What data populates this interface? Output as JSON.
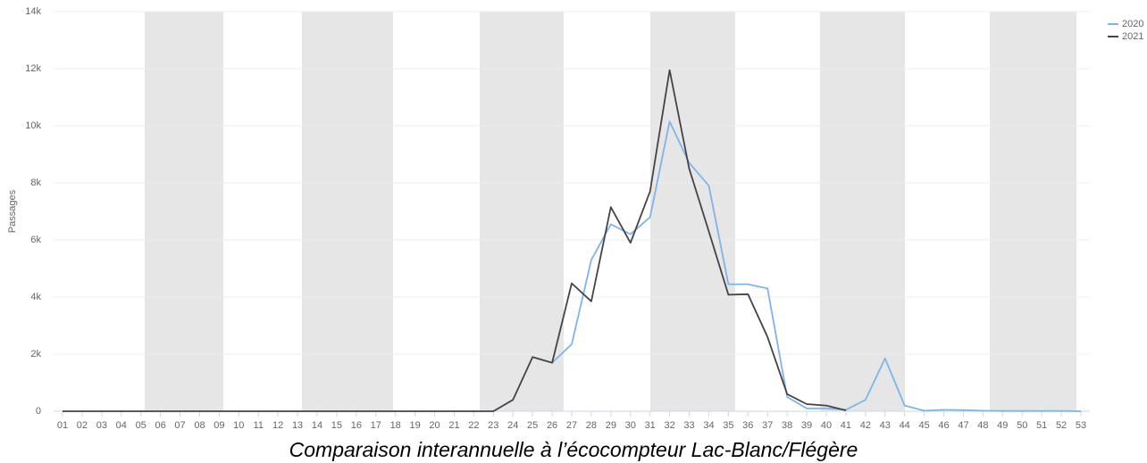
{
  "chart_data": {
    "type": "line",
    "title": "Comparaison interannuelle à l’écocompteur Lac-Blanc/Flégère",
    "y_label": "Passages",
    "categories": [
      "01",
      "02",
      "03",
      "04",
      "05",
      "06",
      "07",
      "08",
      "09",
      "10",
      "11",
      "12",
      "13",
      "14",
      "15",
      "16",
      "17",
      "18",
      "19",
      "20",
      "21",
      "22",
      "23",
      "24",
      "25",
      "26",
      "27",
      "28",
      "29",
      "30",
      "31",
      "32",
      "33",
      "34",
      "35",
      "36",
      "37",
      "38",
      "39",
      "40",
      "41",
      "42",
      "43",
      "44",
      "45",
      "46",
      "47",
      "48",
      "49",
      "50",
      "51",
      "52",
      "53"
    ],
    "series": [
      {
        "name": "2020",
        "color": "#7cb5ec",
        "values": [
          null,
          null,
          null,
          null,
          null,
          null,
          null,
          null,
          null,
          null,
          null,
          null,
          null,
          null,
          null,
          null,
          null,
          null,
          null,
          null,
          null,
          null,
          null,
          null,
          null,
          1700,
          2350,
          5300,
          6550,
          6200,
          6800,
          10150,
          8700,
          7900,
          4450,
          4450,
          4300,
          500,
          100,
          100,
          50,
          400,
          1850,
          200,
          20,
          50,
          40,
          20,
          10,
          10,
          10,
          10,
          0
        ]
      },
      {
        "name": "2021",
        "color": "#434348",
        "values": [
          0,
          0,
          0,
          0,
          0,
          0,
          0,
          0,
          0,
          0,
          0,
          0,
          0,
          0,
          0,
          0,
          0,
          0,
          0,
          0,
          0,
          0,
          0,
          400,
          1900,
          1700,
          4480,
          3850,
          7150,
          5900,
          7700,
          11950,
          8500,
          6300,
          4080,
          4100,
          2600,
          600,
          250,
          200,
          30,
          null,
          null,
          null,
          null,
          null,
          null,
          null,
          null,
          null,
          null,
          null,
          null
        ]
      }
    ],
    "ylim": [
      0,
      14000
    ],
    "yticks": [
      0,
      {
        "value": 2000,
        "label": "2k"
      },
      {
        "value": 4000,
        "label": "4k"
      },
      {
        "value": 6000,
        "label": "6k"
      },
      {
        "value": 8000,
        "label": "8k"
      },
      {
        "value": 10000,
        "label": "10k"
      },
      {
        "value": 12000,
        "label": "12k"
      },
      {
        "value": 14000,
        "label": "14k"
      }
    ],
    "grid": true,
    "legend": "top-right"
  }
}
